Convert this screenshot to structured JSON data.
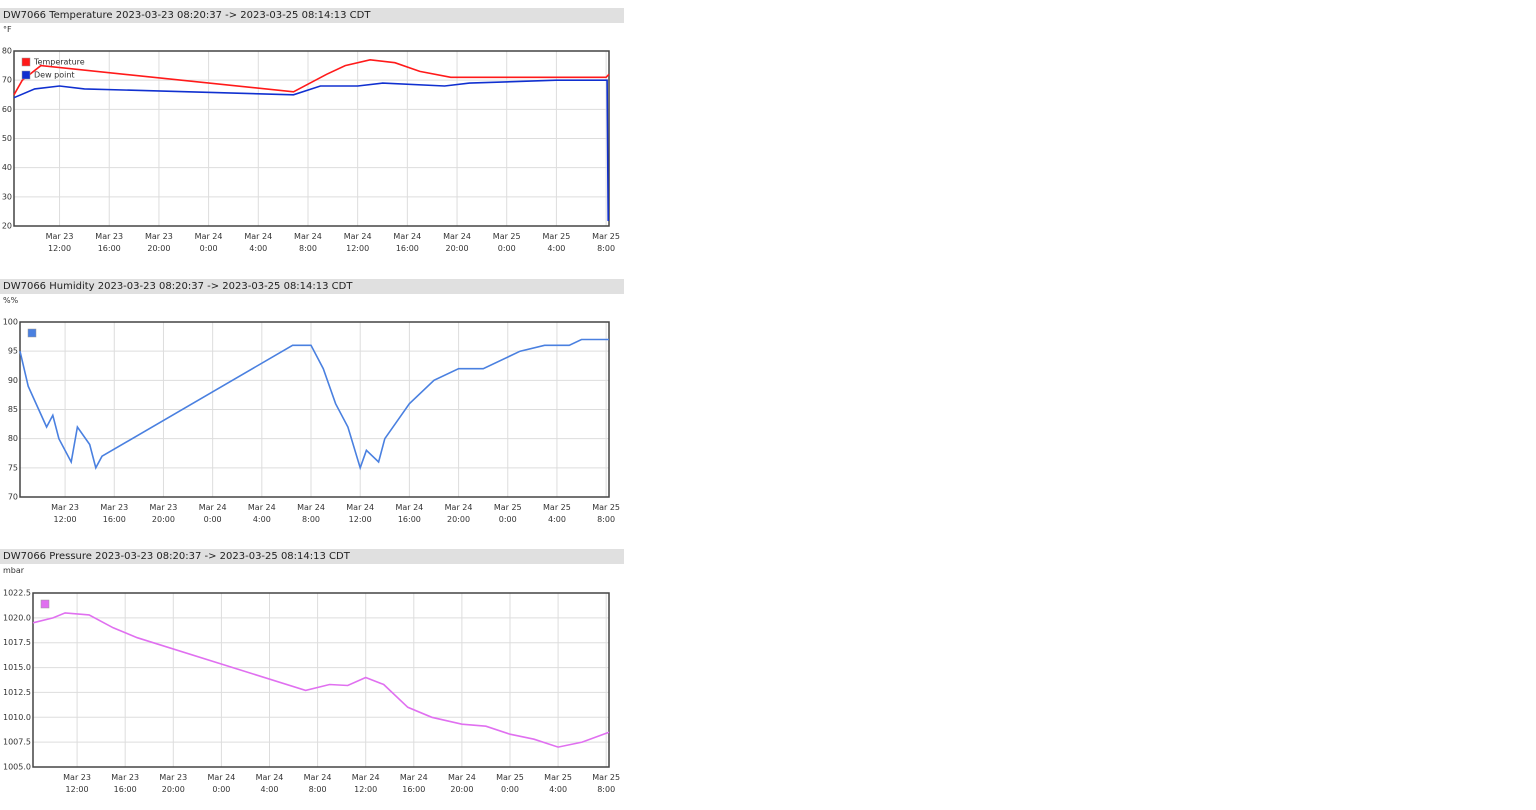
{
  "chart_data": [
    {
      "type": "line",
      "title": "DW7066 Temperature 2023-03-23 08:20:37 -> 2023-03-25 08:14:13 CDT",
      "unit": "°F",
      "xlim": [
        "2023-03-23 08:20",
        "2023-03-25 08:14"
      ],
      "xticks": [
        {
          "value": "2023-03-23 12:00",
          "label": "Mar 23\n12:00"
        },
        {
          "value": "2023-03-23 16:00",
          "label": "Mar 23\n16:00"
        },
        {
          "value": "2023-03-23 20:00",
          "label": "Mar 23\n20:00"
        },
        {
          "value": "2023-03-24 00:00",
          "label": "Mar 24\n0:00"
        },
        {
          "value": "2023-03-24 04:00",
          "label": "Mar 24\n4:00"
        },
        {
          "value": "2023-03-24 08:00",
          "label": "Mar 24\n8:00"
        },
        {
          "value": "2023-03-24 12:00",
          "label": "Mar 24\n12:00"
        },
        {
          "value": "2023-03-24 16:00",
          "label": "Mar 24\n16:00"
        },
        {
          "value": "2023-03-24 20:00",
          "label": "Mar 24\n20:00"
        },
        {
          "value": "2023-03-25 00:00",
          "label": "Mar 25\n0:00"
        },
        {
          "value": "2023-03-25 04:00",
          "label": "Mar 25\n4:00"
        },
        {
          "value": "2023-03-25 08:00",
          "label": "Mar 25\n8:00"
        }
      ],
      "ylim": [
        20,
        80
      ],
      "yticks": [
        20,
        30,
        40,
        50,
        60,
        70,
        80
      ],
      "grid": true,
      "legend": "top-left",
      "series": [
        {
          "name": "Temperature",
          "color": "#ff1a1a",
          "x": [
            "2023-03-23 08:20",
            "2023-03-23 09:00",
            "2023-03-23 10:30",
            "2023-03-24 06:50",
            "2023-03-24 09:30",
            "2023-03-24 11:00",
            "2023-03-24 13:00",
            "2023-03-24 15:00",
            "2023-03-24 17:00",
            "2023-03-24 19:30",
            "2023-03-25 08:00",
            "2023-03-25 08:14"
          ],
          "values": [
            65,
            70,
            75,
            66,
            72,
            75,
            77,
            76,
            73,
            71,
            71,
            72
          ]
        },
        {
          "name": "Dew point",
          "color": "#1030d0",
          "x": [
            "2023-03-23 08:20",
            "2023-03-23 10:00",
            "2023-03-23 12:00",
            "2023-03-23 14:00",
            "2023-03-24 06:50",
            "2023-03-24 09:00",
            "2023-03-24 12:00",
            "2023-03-24 14:00",
            "2023-03-24 19:00",
            "2023-03-24 21:00",
            "2023-03-25 04:00",
            "2023-03-25 08:05",
            "2023-03-25 08:10",
            "2023-03-25 08:14"
          ],
          "values": [
            64,
            67,
            68,
            67,
            65,
            68,
            68,
            69,
            68,
            69,
            70,
            70,
            22,
            22
          ]
        }
      ]
    },
    {
      "type": "line",
      "title": "DW7066 Humidity 2023-03-23 08:20:37 -> 2023-03-25 08:14:13 CDT",
      "unit": "%%",
      "xlim": [
        "2023-03-23 08:20",
        "2023-03-25 08:14"
      ],
      "xticks": [
        {
          "value": "2023-03-23 12:00",
          "label": "Mar 23\n12:00"
        },
        {
          "value": "2023-03-23 16:00",
          "label": "Mar 23\n16:00"
        },
        {
          "value": "2023-03-23 20:00",
          "label": "Mar 23\n20:00"
        },
        {
          "value": "2023-03-24 00:00",
          "label": "Mar 24\n0:00"
        },
        {
          "value": "2023-03-24 04:00",
          "label": "Mar 24\n4:00"
        },
        {
          "value": "2023-03-24 08:00",
          "label": "Mar 24\n8:00"
        },
        {
          "value": "2023-03-24 12:00",
          "label": "Mar 24\n12:00"
        },
        {
          "value": "2023-03-24 16:00",
          "label": "Mar 24\n16:00"
        },
        {
          "value": "2023-03-24 20:00",
          "label": "Mar 24\n20:00"
        },
        {
          "value": "2023-03-25 00:00",
          "label": "Mar 25\n0:00"
        },
        {
          "value": "2023-03-25 04:00",
          "label": "Mar 25\n4:00"
        },
        {
          "value": "2023-03-25 08:00",
          "label": "Mar 25\n8:00"
        }
      ],
      "ylim": [
        70,
        100
      ],
      "yticks": [
        70,
        75,
        80,
        85,
        90,
        95,
        100
      ],
      "grid": true,
      "legend": "top-left",
      "series": [
        {
          "color": "#4a80e0",
          "x": [
            "2023-03-23 08:20",
            "2023-03-23 09:00",
            "2023-03-23 10:30",
            "2023-03-23 11:00",
            "2023-03-23 11:30",
            "2023-03-23 12:30",
            "2023-03-23 13:00",
            "2023-03-23 14:00",
            "2023-03-23 14:30",
            "2023-03-23 15:00",
            "2023-03-24 06:30",
            "2023-03-24 08:00",
            "2023-03-24 09:00",
            "2023-03-24 10:00",
            "2023-03-24 11:00",
            "2023-03-24 12:00",
            "2023-03-24 12:30",
            "2023-03-24 13:30",
            "2023-03-24 14:00",
            "2023-03-24 15:00",
            "2023-03-24 16:00",
            "2023-03-24 18:00",
            "2023-03-24 20:00",
            "2023-03-24 22:00",
            "2023-03-25 01:00",
            "2023-03-25 03:00",
            "2023-03-25 05:00",
            "2023-03-25 06:00",
            "2023-03-25 08:14"
          ],
          "values": [
            95,
            89,
            82,
            84,
            80,
            76,
            82,
            79,
            75,
            77,
            96,
            96,
            92,
            86,
            82,
            75,
            78,
            76,
            80,
            83,
            86,
            90,
            92,
            92,
            95,
            96,
            96,
            97,
            97
          ]
        }
      ]
    },
    {
      "type": "line",
      "title": "DW7066 Pressure 2023-03-23 08:20:37 -> 2023-03-25 08:14:13 CDT",
      "unit": "mbar",
      "xlim": [
        "2023-03-23 08:20",
        "2023-03-25 08:14"
      ],
      "xticks": [
        {
          "value": "2023-03-23 12:00",
          "label": "Mar 23\n12:00"
        },
        {
          "value": "2023-03-23 16:00",
          "label": "Mar 23\n16:00"
        },
        {
          "value": "2023-03-23 20:00",
          "label": "Mar 23\n20:00"
        },
        {
          "value": "2023-03-24 00:00",
          "label": "Mar 24\n0:00"
        },
        {
          "value": "2023-03-24 04:00",
          "label": "Mar 24\n4:00"
        },
        {
          "value": "2023-03-24 08:00",
          "label": "Mar 24\n8:00"
        },
        {
          "value": "2023-03-24 12:00",
          "label": "Mar 24\n12:00"
        },
        {
          "value": "2023-03-24 16:00",
          "label": "Mar 24\n16:00"
        },
        {
          "value": "2023-03-24 20:00",
          "label": "Mar 24\n20:00"
        },
        {
          "value": "2023-03-25 00:00",
          "label": "Mar 25\n0:00"
        },
        {
          "value": "2023-03-25 04:00",
          "label": "Mar 25\n4:00"
        },
        {
          "value": "2023-03-25 08:00",
          "label": "Mar 25\n8:00"
        }
      ],
      "ylim": [
        1005,
        1022.5
      ],
      "yticks": [
        {
          "value": 1005,
          "label": "1005.0"
        },
        1007.5,
        {
          "value": 1010,
          "label": "1010.0"
        },
        1012.5,
        {
          "value": 1015,
          "label": "1015.0"
        },
        1017.5,
        {
          "value": 1020,
          "label": "1020.0"
        },
        1022.5
      ],
      "grid": true,
      "legend": "top-left",
      "series": [
        {
          "color": "#e070f0",
          "x": [
            "2023-03-23 08:20",
            "2023-03-23 10:00",
            "2023-03-23 11:00",
            "2023-03-23 13:00",
            "2023-03-23 15:00",
            "2023-03-23 17:00",
            "2023-03-24 07:00",
            "2023-03-24 09:00",
            "2023-03-24 10:30",
            "2023-03-24 12:00",
            "2023-03-24 13:30",
            "2023-03-24 15:30",
            "2023-03-24 17:30",
            "2023-03-24 20:00",
            "2023-03-24 22:00",
            "2023-03-25 00:00",
            "2023-03-25 02:00",
            "2023-03-25 04:00",
            "2023-03-25 06:00",
            "2023-03-25 08:14"
          ],
          "values": [
            1019.5,
            1020,
            1020.5,
            1020.3,
            1019,
            1018,
            1012.7,
            1013.3,
            1013.2,
            1014,
            1013.3,
            1011,
            1010,
            1009.3,
            1009.1,
            1008.3,
            1007.8,
            1007,
            1007.5,
            1008.5
          ]
        }
      ]
    }
  ]
}
